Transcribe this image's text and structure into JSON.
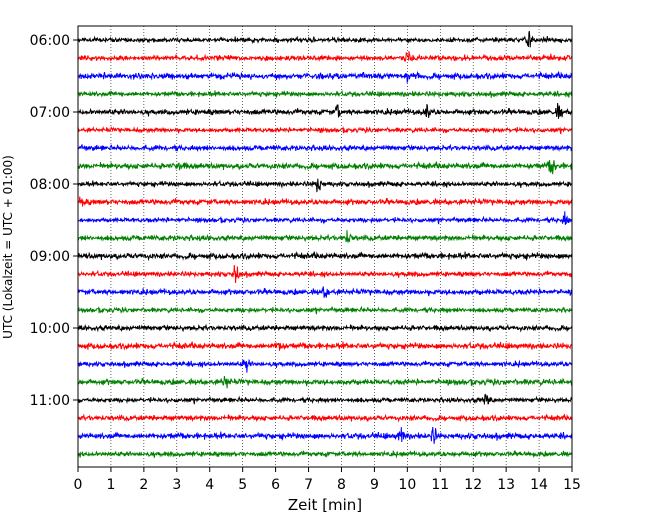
{
  "chart_data": {
    "type": "line",
    "subtype": "helicorder",
    "title": "",
    "xlabel": "Zeit  [min]",
    "ylabel": "UTC (Lokalzeit = UTC + 01:00)",
    "xlim": [
      0,
      15
    ],
    "x_ticks": [
      "0",
      "1",
      "2",
      "3",
      "4",
      "5",
      "6",
      "7",
      "8",
      "9",
      "10",
      "11",
      "12",
      "13",
      "14",
      "15"
    ],
    "y_tick_labels": [
      "06:00",
      "07:00",
      "08:00",
      "09:00",
      "10:00",
      "11:00"
    ],
    "grid": "vertical dotted lines at each minute",
    "trace_count": 24,
    "trace_interval_minutes": 15,
    "start_time": "06:00",
    "trace_colors": [
      "#000000",
      "#ff0000",
      "#0000ff",
      "#008000"
    ],
    "events": [
      {
        "trace": 0,
        "x": 13.7,
        "amp": 8
      },
      {
        "trace": 1,
        "x": 10.0,
        "amp": 5
      },
      {
        "trace": 2,
        "x": 10.0,
        "amp": 5
      },
      {
        "trace": 4,
        "x": 7.9,
        "amp": 6
      },
      {
        "trace": 4,
        "x": 10.6,
        "amp": 7
      },
      {
        "trace": 4,
        "x": 14.6,
        "amp": 7
      },
      {
        "trace": 7,
        "x": 14.4,
        "amp": 9
      },
      {
        "trace": 7,
        "x": 3.1,
        "amp": 4
      },
      {
        "trace": 8,
        "x": 7.3,
        "amp": 7
      },
      {
        "trace": 9,
        "x": 0.1,
        "amp": 5
      },
      {
        "trace": 10,
        "x": 14.8,
        "amp": 5
      },
      {
        "trace": 11,
        "x": 8.2,
        "amp": 5
      },
      {
        "trace": 13,
        "x": 4.8,
        "amp": 9
      },
      {
        "trace": 14,
        "x": 7.5,
        "amp": 5
      },
      {
        "trace": 17,
        "x": 6.1,
        "amp": 6
      },
      {
        "trace": 18,
        "x": 5.1,
        "amp": 6
      },
      {
        "trace": 19,
        "x": 4.5,
        "amp": 8
      },
      {
        "trace": 20,
        "x": 12.4,
        "amp": 7
      },
      {
        "trace": 22,
        "x": 9.8,
        "amp": 7
      },
      {
        "trace": 22,
        "x": 10.8,
        "amp": 7
      }
    ]
  }
}
